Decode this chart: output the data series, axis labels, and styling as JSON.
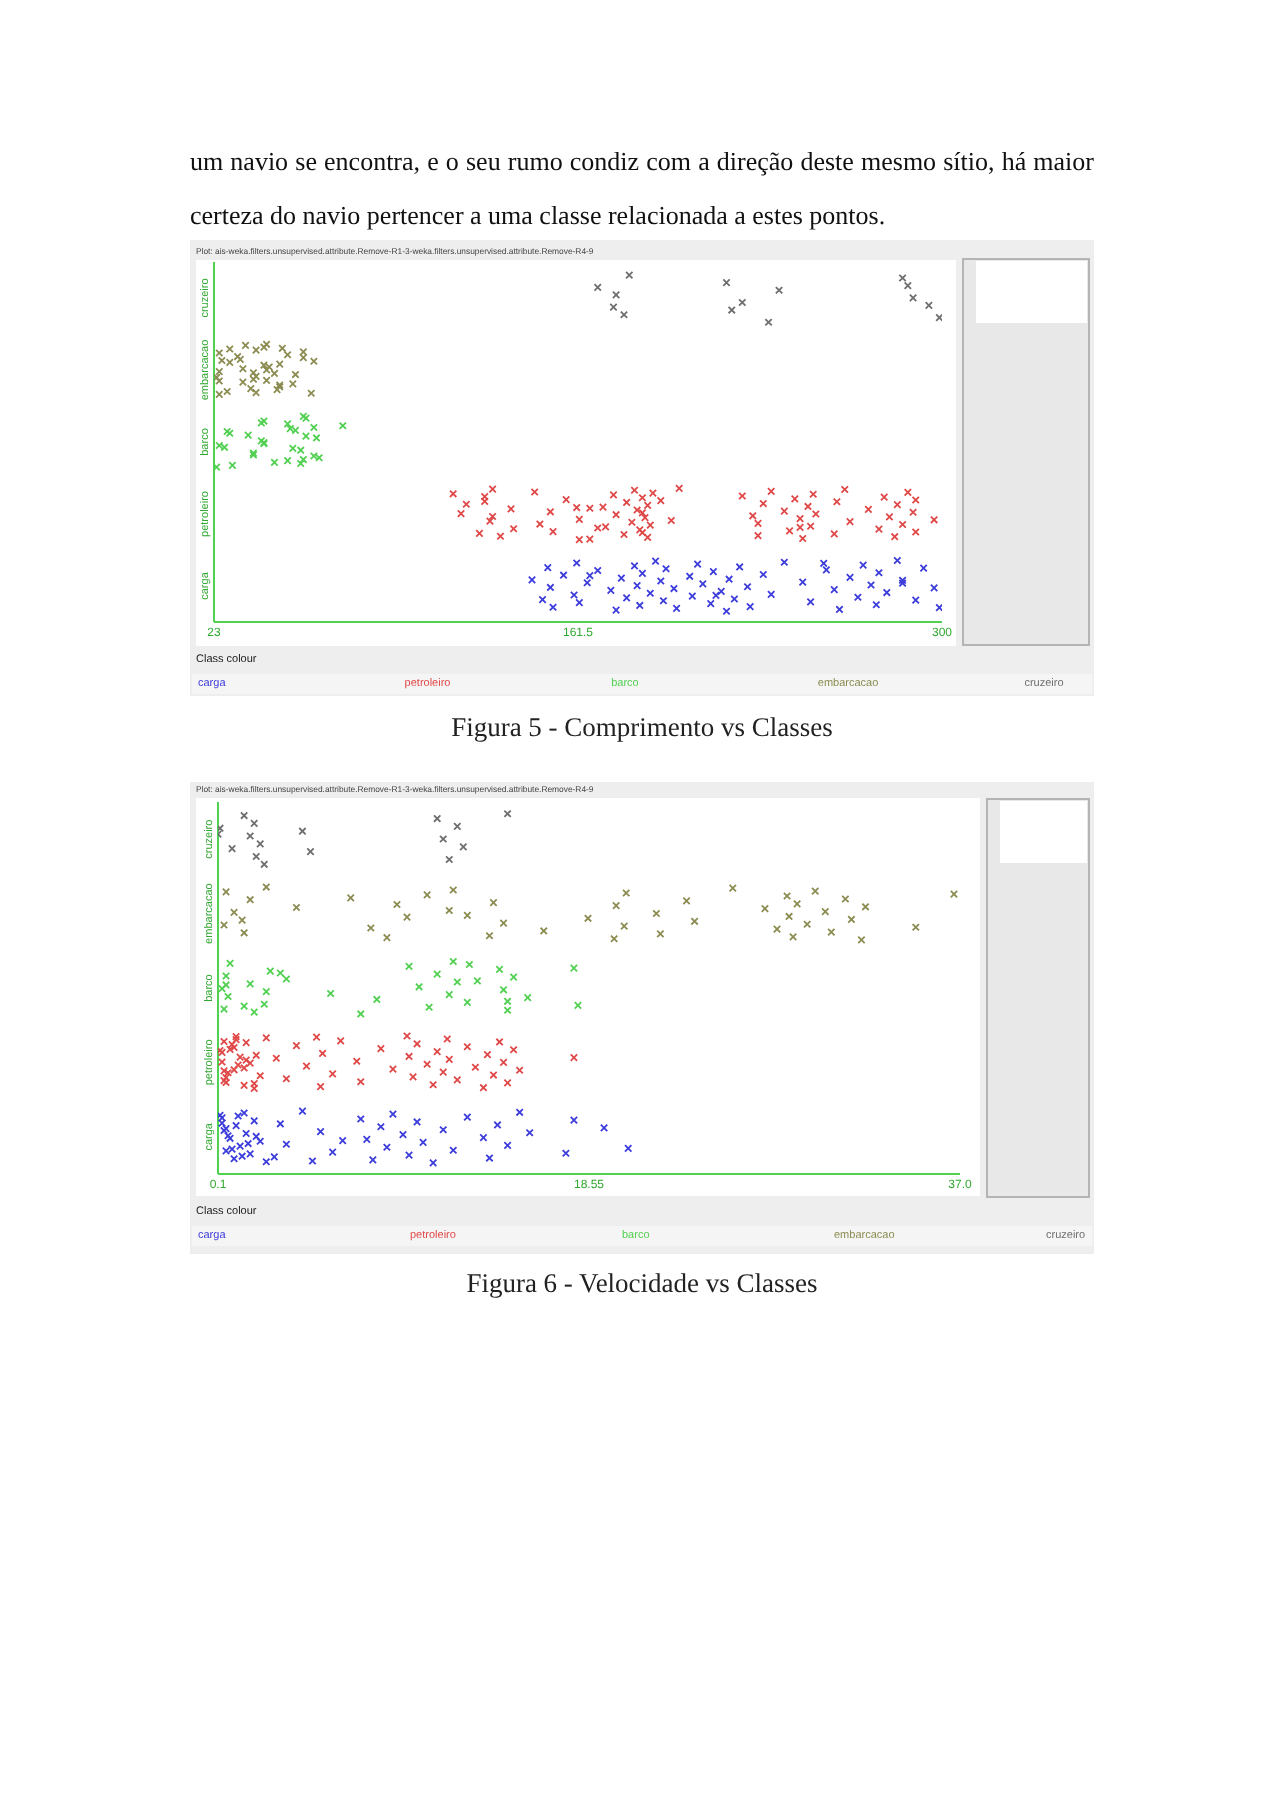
{
  "chart_data": [
    {
      "type": "scatter",
      "title": "Figura 5 - Comprimento vs Classes",
      "subtitle": "Plot: ais-weka.filters.unsupervised.attribute.Remove-R1-3-weka.filters.unsupervised.attribute.Remove-R4-9",
      "annotations": [
        "um navio se encontra, e o seu rumo condiz com a direção deste mesmo sítio, há maior certeza do navio pertencer a uma classe relacionada a estes pontos."
      ],
      "orientation": "horizontal",
      "categories": [
        "cruzeiro",
        "embarcacao",
        "barco",
        "petroleiro",
        "carga"
      ],
      "xlim": [
        23,
        300
      ],
      "xticks": [
        23,
        161.5,
        300
      ],
      "legend": "bottom",
      "legend_title": "Class colour",
      "marker": "cross",
      "series": [
        {
          "name": "carga",
          "color": "#3c3cdc",
          "x": [
            "carga",
            "carga",
            "carga",
            "carga",
            "carga",
            "carga",
            "carga",
            "carga",
            "carga",
            "carga",
            "carga",
            "carga",
            "carga",
            "carga",
            "carga",
            "carga",
            "carga",
            "carga",
            "carga",
            "carga",
            "carga",
            "carga",
            "carga",
            "carga",
            "carga",
            "carga",
            "carga",
            "carga",
            "carga",
            "carga",
            "carga",
            "carga",
            "carga",
            "carga",
            "carga",
            "carga",
            "carga",
            "carga",
            "carga",
            "carga",
            "carga",
            "carga",
            "carga",
            "carga",
            "carga",
            "carga",
            "carga",
            "carga",
            "carga",
            "carga",
            "carga",
            "carga",
            "carga",
            "carga",
            "carga",
            "carga",
            "carga",
            "carga",
            "carga",
            "carga",
            "carga",
            "carga",
            "carga",
            "carga"
          ],
          "values": [
            144,
            148,
            150,
            151,
            152,
            156,
            160,
            161,
            165,
            162,
            169,
            174,
            176,
            178,
            180,
            183,
            184,
            185,
            186,
            189,
            191,
            193,
            194,
            195,
            198,
            199,
            204,
            205,
            207,
            209,
            212,
            213,
            216,
            218,
            219,
            221,
            223,
            226,
            227,
            232,
            235,
            240,
            247,
            250,
            256,
            259,
            261,
            265,
            268,
            270,
            273,
            275,
            276,
            279,
            283,
            285,
            290,
            293,
            297,
            299,
            166,
            214,
            255,
            285
          ]
        },
        {
          "name": "petroleiro",
          "color": "#e04848",
          "x": [
            "petroleiro",
            "petroleiro",
            "petroleiro",
            "petroleiro",
            "petroleiro",
            "petroleiro",
            "petroleiro",
            "petroleiro",
            "petroleiro",
            "petroleiro",
            "petroleiro",
            "petroleiro",
            "petroleiro",
            "petroleiro",
            "petroleiro",
            "petroleiro",
            "petroleiro",
            "petroleiro",
            "petroleiro",
            "petroleiro",
            "petroleiro",
            "petroleiro",
            "petroleiro",
            "petroleiro",
            "petroleiro",
            "petroleiro",
            "petroleiro",
            "petroleiro",
            "petroleiro",
            "petroleiro",
            "petroleiro",
            "petroleiro",
            "petroleiro",
            "petroleiro",
            "petroleiro",
            "petroleiro",
            "petroleiro",
            "petroleiro",
            "petroleiro",
            "petroleiro",
            "petroleiro",
            "petroleiro",
            "petroleiro",
            "petroleiro",
            "petroleiro",
            "petroleiro",
            "petroleiro",
            "petroleiro",
            "petroleiro",
            "petroleiro",
            "petroleiro",
            "petroleiro",
            "petroleiro",
            "petroleiro",
            "petroleiro",
            "petroleiro",
            "petroleiro",
            "petroleiro",
            "petroleiro",
            "petroleiro",
            "petroleiro",
            "petroleiro",
            "petroleiro",
            "petroleiro",
            "petroleiro",
            "petroleiro",
            "petroleiro",
            "petroleiro",
            "petroleiro",
            "petroleiro",
            "petroleiro",
            "petroleiro",
            "petroleiro",
            "petroleiro",
            "petroleiro",
            "petroleiro"
          ],
          "values": [
            114,
            117,
            124,
            126,
            128,
            129,
            136,
            137,
            126,
            129,
            132,
            119,
            147,
            145,
            151,
            152,
            157,
            162,
            166,
            171,
            172,
            175,
            176,
            179,
            180,
            182,
            183,
            184,
            185,
            186,
            187,
            188,
            188,
            189,
            190,
            186,
            186,
            193,
            197,
            200,
            166,
            169,
            224,
            228,
            230,
            232,
            230,
            235,
            240,
            242,
            244,
            246,
            247,
            249,
            250,
            251,
            252,
            259,
            260,
            265,
            263,
            272,
            276,
            278,
            280,
            282,
            283,
            285,
            287,
            289,
            290,
            290,
            297,
            162,
            161,
            246
          ]
        },
        {
          "name": "barco",
          "color": "#52d052",
          "x": [
            "barco",
            "barco",
            "barco",
            "barco",
            "barco",
            "barco",
            "barco",
            "barco",
            "barco",
            "barco",
            "barco",
            "barco",
            "barco",
            "barco",
            "barco",
            "barco",
            "barco",
            "barco",
            "barco",
            "barco",
            "barco",
            "barco",
            "barco",
            "barco",
            "barco",
            "barco",
            "barco",
            "barco",
            "barco",
            "barco",
            "barco"
          ],
          "values": [
            57,
            61,
            27,
            24,
            36,
            38,
            41,
            42,
            46,
            54,
            56,
            58,
            62,
            63,
            72,
            25,
            30,
            29,
            38,
            42,
            41,
            51,
            52,
            53,
            57,
            58,
            61,
            51,
            42,
            56,
            28
          ]
        },
        {
          "name": "embarcacao",
          "color": "#8c8c52",
          "x": [
            "embarcacao",
            "embarcacao",
            "embarcacao",
            "embarcacao",
            "embarcacao",
            "embarcacao",
            "embarcacao",
            "embarcacao",
            "embarcacao",
            "embarcacao",
            "embarcacao",
            "embarcacao",
            "embarcacao",
            "embarcacao",
            "embarcacao",
            "embarcacao",
            "embarcacao",
            "embarcacao",
            "embarcacao",
            "embarcacao",
            "embarcacao",
            "embarcacao",
            "embarcacao",
            "embarcacao",
            "embarcacao",
            "embarcacao",
            "embarcacao",
            "embarcacao",
            "embarcacao",
            "embarcacao",
            "embarcacao",
            "embarcacao",
            "embarcacao",
            "embarcacao",
            "embarcacao",
            "embarcacao",
            "embarcacao",
            "embarcacao",
            "embarcacao"
          ],
          "values": [
            46,
            60,
            61,
            25,
            29,
            34,
            37,
            32,
            39,
            43,
            48,
            53,
            57,
            25,
            28,
            33,
            38,
            42,
            44,
            48,
            51,
            54,
            25,
            29,
            34,
            39,
            43,
            47,
            57,
            24,
            35,
            42,
            48,
            25,
            38,
            39,
            26,
            43,
            49
          ]
        },
        {
          "name": "cruzeiro",
          "color": "#6e6e6e",
          "x": [
            "cruzeiro",
            "cruzeiro",
            "cruzeiro",
            "cruzeiro",
            "cruzeiro",
            "cruzeiro",
            "cruzeiro",
            "cruzeiro",
            "cruzeiro",
            "cruzeiro",
            "cruzeiro",
            "cruzeiro",
            "cruzeiro",
            "cruzeiro",
            "cruzeiro"
          ],
          "values": [
            169,
            175,
            181,
            176,
            179,
            218,
            224,
            234,
            238,
            220,
            285,
            289,
            299,
            287,
            295
          ]
        }
      ]
    },
    {
      "type": "scatter",
      "title": "Figura 6 - Velocidade vs Classes",
      "subtitle": "Plot: ais-weka.filters.unsupervised.attribute.Remove-R1-3-weka.filters.unsupervised.attribute.Remove-R4-9",
      "orientation": "horizontal",
      "categories": [
        "cruzeiro",
        "embarcacao",
        "barco",
        "petroleiro",
        "carga"
      ],
      "xlim": [
        0.1,
        37
      ],
      "xticks": [
        0.1,
        18.55,
        {
          "value": 37,
          "label": "37.0"
        }
      ],
      "legend": "bottom",
      "legend_title": "Class colour",
      "marker": "cross",
      "series": [
        {
          "name": "carga",
          "color": "#3c3cdc",
          "x": [
            "carga",
            "carga",
            "carga",
            "carga",
            "carga",
            "carga",
            "carga",
            "carga",
            "carga",
            "carga",
            "carga",
            "carga",
            "carga",
            "carga",
            "carga",
            "carga",
            "carga",
            "carga",
            "carga",
            "carga",
            "carga",
            "carga",
            "carga",
            "carga",
            "carga",
            "carga",
            "carga",
            "carga",
            "carga",
            "carga",
            "carga",
            "carga",
            "carga",
            "carga",
            "carga",
            "carga",
            "carga",
            "carga",
            "carga",
            "carga",
            "carga",
            "carga",
            "carga",
            "carga",
            "carga",
            "carga",
            "carga",
            "carga",
            "carga",
            "carga",
            "carga",
            "carga",
            "carga",
            "carga"
          ],
          "values": [
            0.4,
            0.5,
            0.3,
            0.7,
            0.9,
            1.0,
            1.2,
            1.4,
            1.5,
            1.7,
            1.9,
            2.2,
            2.5,
            0.5,
            0.8,
            1.1,
            2.0,
            2.9,
            3.2,
            3.5,
            4.3,
            5.2,
            5.8,
            7.2,
            7.5,
            7.8,
            8.2,
            8.5,
            8.8,
            9.3,
            9.6,
            10.0,
            10.3,
            10.8,
            11.3,
            11.8,
            12.5,
            13.3,
            13.6,
            14.0,
            14.5,
            15.1,
            15.6,
            17.4,
            17.8,
            6.3,
            4.8,
            19.3,
            20.5,
            0.2,
            0.6,
            1.3,
            0.3,
            1.6
          ]
        },
        {
          "name": "petroleiro",
          "color": "#e04848",
          "x": [
            "petroleiro",
            "petroleiro",
            "petroleiro",
            "petroleiro",
            "petroleiro",
            "petroleiro",
            "petroleiro",
            "petroleiro",
            "petroleiro",
            "petroleiro",
            "petroleiro",
            "petroleiro",
            "petroleiro",
            "petroleiro",
            "petroleiro",
            "petroleiro",
            "petroleiro",
            "petroleiro",
            "petroleiro",
            "petroleiro",
            "petroleiro",
            "petroleiro",
            "petroleiro",
            "petroleiro",
            "petroleiro",
            "petroleiro",
            "petroleiro",
            "petroleiro",
            "petroleiro",
            "petroleiro",
            "petroleiro",
            "petroleiro",
            "petroleiro",
            "petroleiro",
            "petroleiro",
            "petroleiro",
            "petroleiro",
            "petroleiro",
            "petroleiro",
            "petroleiro",
            "petroleiro",
            "petroleiro",
            "petroleiro",
            "petroleiro",
            "petroleiro",
            "petroleiro",
            "petroleiro",
            "petroleiro",
            "petroleiro",
            "petroleiro",
            "petroleiro",
            "petroleiro",
            "petroleiro",
            "petroleiro",
            "petroleiro",
            "petroleiro",
            "petroleiro",
            "petroleiro",
            "petroleiro",
            "petroleiro",
            "petroleiro",
            "petroleiro"
          ],
          "values": [
            0.4,
            0.3,
            0.5,
            0.7,
            0.9,
            1.0,
            1.2,
            0.5,
            0.8,
            1.1,
            1.4,
            0.3,
            0.6,
            1.0,
            1.5,
            0.4,
            0.9,
            1.4,
            1.9,
            2.0,
            2.2,
            1.5,
            1.7,
            1.9,
            0.2,
            0.4,
            2.5,
            3.0,
            3.5,
            4.0,
            4.5,
            5.2,
            5.3,
            5.8,
            6.2,
            7.0,
            7.2,
            8.2,
            8.8,
            9.5,
            9.6,
            9.8,
            10.0,
            10.5,
            10.8,
            11.0,
            11.3,
            11.5,
            11.6,
            12.0,
            12.5,
            12.9,
            13.3,
            13.5,
            13.8,
            14.1,
            14.3,
            14.5,
            14.8,
            15.1,
            5.0,
            17.8
          ]
        },
        {
          "name": "barco",
          "color": "#52d052",
          "x": [
            "barco",
            "barco",
            "barco",
            "barco",
            "barco",
            "barco",
            "barco",
            "barco",
            "barco",
            "barco",
            "barco",
            "barco",
            "barco",
            "barco",
            "barco",
            "barco",
            "barco",
            "barco",
            "barco",
            "barco",
            "barco",
            "barco",
            "barco",
            "barco",
            "barco",
            "barco",
            "barco",
            "barco",
            "barco",
            "barco",
            "barco",
            "barco",
            "barco",
            "barco",
            "barco"
          ],
          "values": [
            1.4,
            3.2,
            5.7,
            7.2,
            13.0,
            14.5,
            17.8,
            0.3,
            0.4,
            0.5,
            0.6,
            0.7,
            1.7,
            2.4,
            2.7,
            2.5,
            1.9,
            3.5,
            8.0,
            9.6,
            10.1,
            10.6,
            11.0,
            11.6,
            11.8,
            12.0,
            12.5,
            14.1,
            14.3,
            14.5,
            14.8,
            15.5,
            12.6,
            0.5,
            18.0
          ]
        },
        {
          "name": "embarcacao",
          "color": "#8c8c52",
          "x": [
            "embarcacao",
            "embarcacao",
            "embarcacao",
            "embarcacao",
            "embarcacao",
            "embarcacao",
            "embarcacao",
            "embarcacao",
            "embarcacao",
            "embarcacao",
            "embarcacao",
            "embarcacao",
            "embarcacao",
            "embarcacao",
            "embarcacao",
            "embarcacao",
            "embarcacao",
            "embarcacao",
            "embarcacao",
            "embarcacao",
            "embarcacao",
            "embarcacao",
            "embarcacao",
            "embarcacao",
            "embarcacao",
            "embarcacao",
            "embarcacao",
            "embarcacao",
            "embarcacao",
            "embarcacao",
            "embarcacao",
            "embarcacao",
            "embarcacao",
            "embarcacao",
            "embarcacao",
            "embarcacao",
            "embarcacao",
            "embarcacao",
            "embarcacao",
            "embarcacao",
            "embarcacao",
            "embarcacao",
            "embarcacao",
            "embarcacao",
            "embarcacao",
            "embarcacao",
            "embarcacao"
          ],
          "values": [
            9.5,
            8.5,
            9.0,
            0.4,
            0.5,
            0.9,
            1.4,
            1.7,
            1.3,
            2.5,
            4.0,
            7.7,
            10.5,
            12.5,
            13.6,
            13.8,
            14.3,
            11.8,
            11.6,
            16.3,
            6.7,
            18.5,
            19.8,
            19.9,
            20.3,
            20.4,
            21.9,
            22.1,
            23.4,
            23.8,
            25.7,
            27.3,
            27.9,
            28.4,
            28.5,
            28.7,
            28.9,
            29.4,
            29.8,
            30.3,
            30.6,
            31.3,
            31.6,
            32.1,
            32.3,
            34.8,
            36.7
          ]
        },
        {
          "name": "cruzeiro",
          "color": "#6e6e6e",
          "x": [
            "cruzeiro",
            "cruzeiro",
            "cruzeiro",
            "cruzeiro",
            "cruzeiro",
            "cruzeiro",
            "cruzeiro",
            "cruzeiro",
            "cruzeiro",
            "cruzeiro",
            "cruzeiro",
            "cruzeiro",
            "cruzeiro",
            "cruzeiro",
            "cruzeiro",
            "cruzeiro",
            "cruzeiro"
          ],
          "values": [
            0.2,
            0.8,
            1.4,
            1.7,
            2.0,
            1.9,
            2.2,
            2.4,
            4.3,
            4.7,
            11.0,
            11.3,
            11.6,
            12.0,
            12.3,
            14.5,
            0.1
          ]
        }
      ]
    }
  ]
}
